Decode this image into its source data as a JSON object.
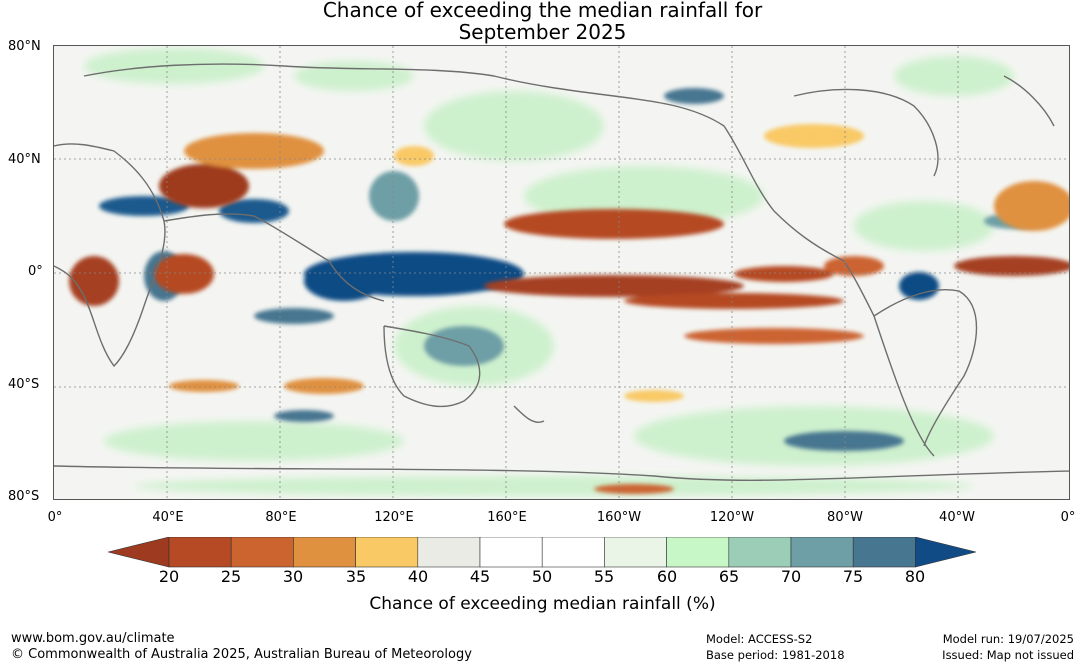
{
  "title_line1": "Chance of exceeding the median rainfall for",
  "title_line2": "September 2025",
  "lat_labels": [
    "80°N",
    "40°N",
    "0°",
    "40°S",
    "80°S"
  ],
  "lon_labels": [
    "0°",
    "40°E",
    "80°E",
    "120°E",
    "160°E",
    "160°W",
    "120°W",
    "80°W",
    "40°W",
    "0°"
  ],
  "legend": {
    "title": "Chance of exceeding median rainfall (%)",
    "ticks": [
      "20",
      "25",
      "30",
      "35",
      "40",
      "45",
      "50",
      "55",
      "60",
      "65",
      "70",
      "75",
      "80"
    ],
    "colors": [
      "#9e3a1f",
      "#b54a24",
      "#cc6430",
      "#e0913f",
      "#f9c966",
      "#ebebe6",
      "#ffffff",
      "#ffffff",
      "#eaf5e8",
      "#c7f7c7",
      "#9ccdb7",
      "#6e9fa6",
      "#477690",
      "#114b85"
    ]
  },
  "footer": {
    "website": "www.bom.gov.au/climate",
    "copyright": "© Commonwealth of Australia 2025, Australian Bureau of Meteorology",
    "model": "Model: ACCESS-S2",
    "base_period": "Base period: 1981-2018",
    "model_run": "Model run: 19/07/2025",
    "issued": "Issued: Map not issued"
  }
}
